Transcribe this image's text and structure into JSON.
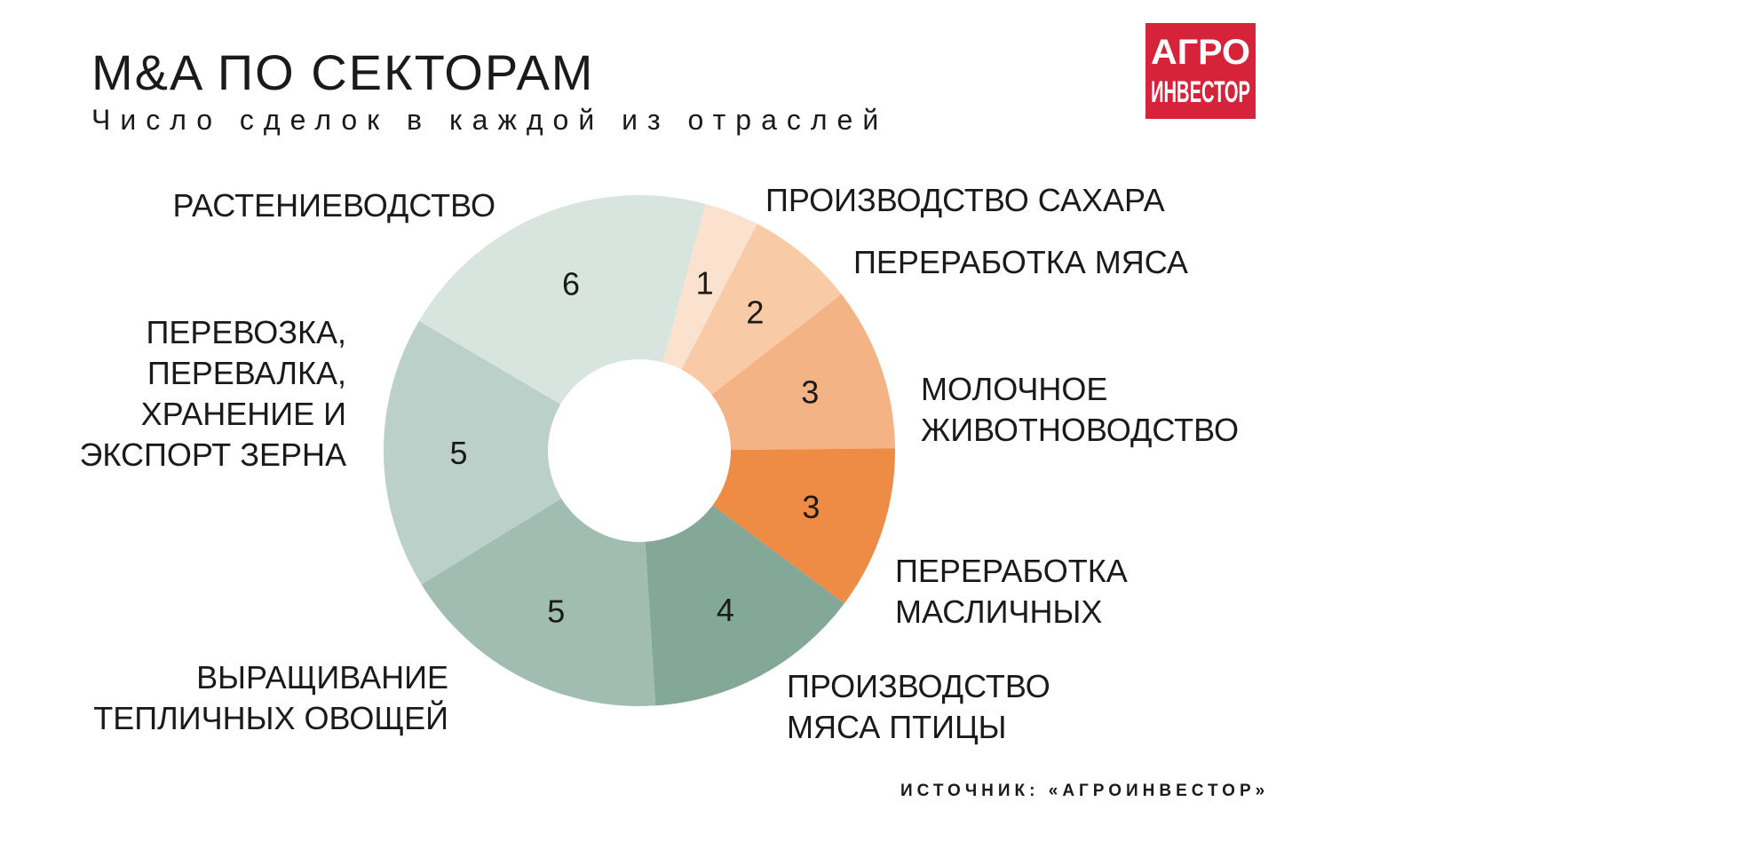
{
  "chart_data": {
    "type": "pie",
    "donut": true,
    "title": "M&A ПО СЕКТОРАМ",
    "subtitle": "Число сделок в каждой из отраслей",
    "categories": [
      "ПРОИЗВОДСТВО САХАРА",
      "ПЕРЕРАБОТКА МЯСА",
      "МОЛОЧНОЕ ЖИВОТНОВОДСТВО",
      "ПЕРЕРАБОТКА МАСЛИЧНЫХ",
      "ПРОИЗВОДСТВО МЯСА ПТИЦЫ",
      "ВЫРАЩИВАНИЕ ТЕПЛИЧНЫХ ОВОЩЕЙ",
      "ПЕРЕВОЗКА, ПЕРЕВАЛКА, ХРАНЕНИЕ И ЭКСПОРТ ЗЕРНА",
      "РАСТЕНИЕВОДСТВО"
    ],
    "values": [
      1,
      2,
      3,
      3,
      4,
      5,
      5,
      6
    ],
    "label_lines": [
      [
        "ПРОИЗВОДСТВО САХАРА"
      ],
      [
        "ПЕРЕРАБОТКА МЯСА"
      ],
      [
        "МОЛОЧНОЕ",
        "ЖИВОТНОВОДСТВО"
      ],
      [
        "ПЕРЕРАБОТКА",
        "МАСЛИЧНЫХ"
      ],
      [
        "ПРОИЗВОДСТВО",
        "МЯСА ПТИЦЫ"
      ],
      [
        "ВЫРАЩИВАНИЕ",
        "ТЕПЛИЧНЫХ ОВОЩЕЙ"
      ],
      [
        "ПЕРЕВОЗКА,",
        "ПЕРЕВАЛКА,",
        "ХРАНЕНИЕ И",
        "ЭКСПОРТ ЗЕРНА"
      ],
      [
        "РАСТЕНИЕВОДСТВО"
      ]
    ],
    "colors": [
      "#fbe2cf",
      "#f8cba6",
      "#f4b385",
      "#ee8b45",
      "#83a898",
      "#a1bcb1",
      "#bad0c8",
      "#d8e5df"
    ],
    "source": "ИСТОЧНИК: «АГРОИНВЕСТОР»"
  },
  "logo": {
    "line1": "АГРО",
    "line2": "ИНВЕСТОР",
    "color": "#d7233a"
  }
}
